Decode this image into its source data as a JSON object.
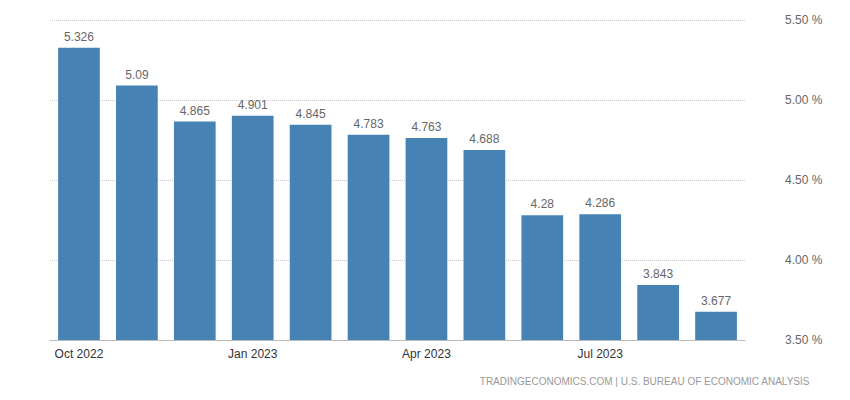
{
  "chart_data": {
    "type": "bar",
    "categories": [
      "Oct 2022",
      null,
      null,
      "Jan 2023",
      null,
      null,
      "Apr 2023",
      null,
      null,
      "Jul 2023",
      null,
      null
    ],
    "values": [
      5.326,
      5.09,
      4.865,
      4.901,
      4.845,
      4.783,
      4.763,
      4.688,
      4.28,
      4.286,
      3.843,
      3.677
    ],
    "color": "#4682b4",
    "ylim": [
      3.5,
      5.5
    ],
    "yticks": [
      {
        "value": 3.5,
        "label": "3.50 %"
      },
      {
        "value": 4.0,
        "label": "4.00 %"
      },
      {
        "value": 4.5,
        "label": "4.50 %"
      },
      {
        "value": 5.0,
        "label": "5.00 %"
      },
      {
        "value": 5.5,
        "label": "5.50 %"
      }
    ],
    "grid": true,
    "data_labels": true,
    "annotation": "TRADINGECONOMICS.COM | U.S. BUREAU OF ECONOMIC ANALYSIS"
  }
}
